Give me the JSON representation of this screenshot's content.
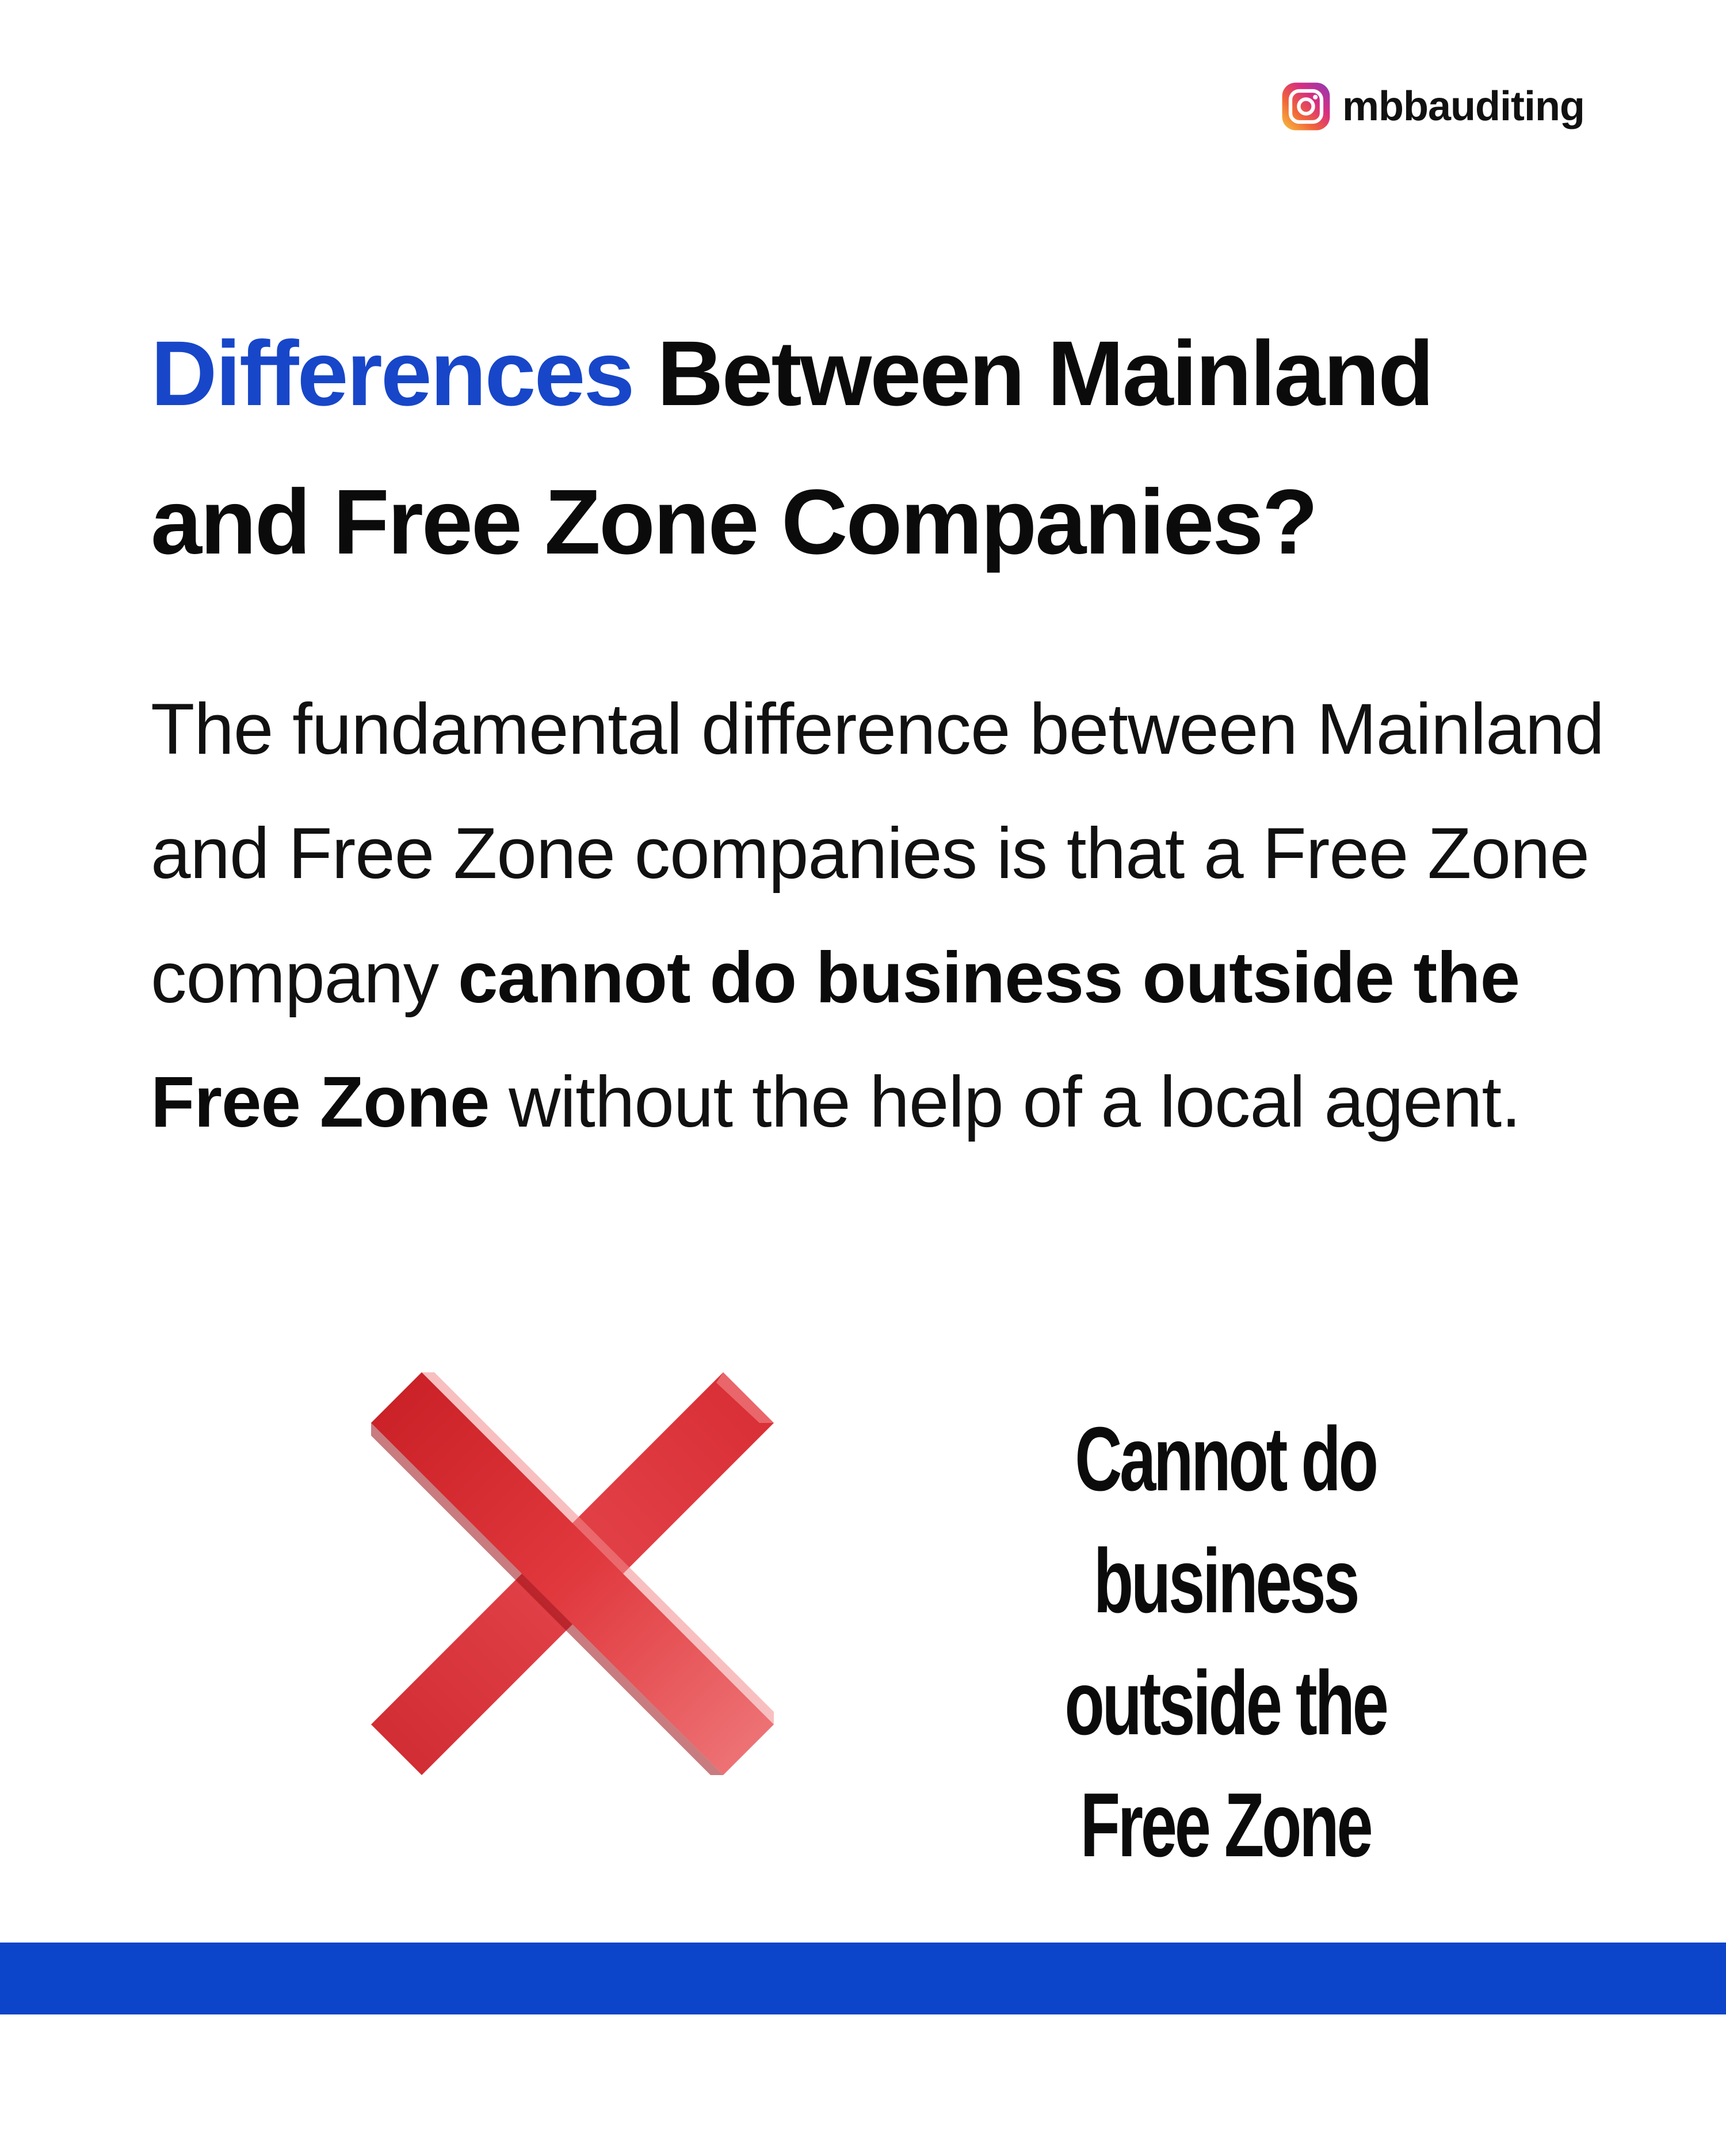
{
  "header": {
    "instagram_handle": "mbbauditing",
    "icon": "instagram-icon"
  },
  "title": {
    "accent_word": "Differences",
    "rest_line1": " Between Mainland",
    "line2": "and Free Zone Companies?"
  },
  "body": {
    "part1": "The fundamental difference between Mainland and Free Zone companies is that a Free Zone company ",
    "bold": "cannot do business outside the Free Zone",
    "part2": " without the help of a local agent."
  },
  "callout": {
    "icon": "red-x-icon",
    "line1": "Cannot do business",
    "line2": "outside the",
    "line3": "Free Zone"
  },
  "colors": {
    "accent": "#1746c9",
    "bar": "#0c45c9",
    "x_mark": "#e0383d"
  }
}
